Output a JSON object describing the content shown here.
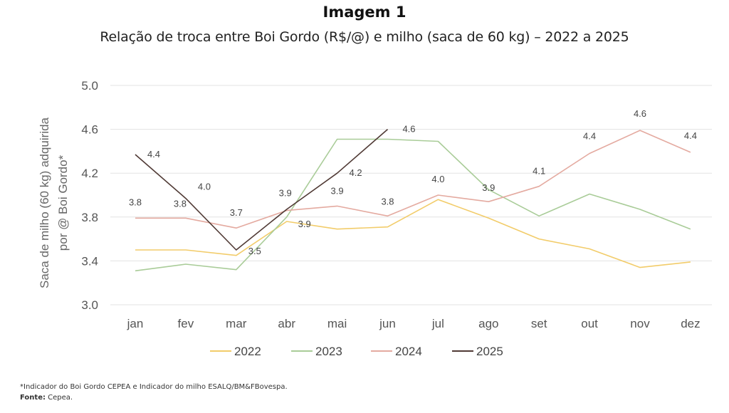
{
  "header": {
    "title": "Imagem 1",
    "subtitle": "Relação de troca entre Boi Gordo (R$/@) e milho (saca de 60 kg) – 2022 a 2025"
  },
  "footer": {
    "note": "*Indicador do Boi Gordo CEPEA e Indicador do milho ESALQ/BM&FBovespa.",
    "source_label": "Fonte:",
    "source_value": "Cepea."
  },
  "chart_data": {
    "type": "line",
    "title": "Imagem 1",
    "subtitle": "Relação de troca entre Boi Gordo (R$/@) e milho (saca de 60 kg) – 2022 a 2025",
    "ylabel_line1": "Saca de milho (60 kg) adquirida",
    "ylabel_line2": "por @ Boi Gordo*",
    "xlabel": "",
    "categories": [
      "jan",
      "fev",
      "mar",
      "abr",
      "mai",
      "jun",
      "jul",
      "ago",
      "set",
      "out",
      "nov",
      "dez"
    ],
    "yticks": [
      "5.0",
      "4.6",
      "4.2",
      "3.8",
      "3.4",
      "3.0"
    ],
    "ylim": [
      3.0,
      5.0
    ],
    "grid": "horizontal",
    "legend_position": "bottom",
    "series": [
      {
        "name": "2022",
        "color": "#f2cc6a",
        "values": [
          3.5,
          3.5,
          3.45,
          3.76,
          3.69,
          3.71,
          3.96,
          3.79,
          3.6,
          3.51,
          3.34,
          3.39
        ]
      },
      {
        "name": "2023",
        "color": "#a9cc98",
        "values": [
          3.31,
          3.37,
          3.32,
          3.8,
          4.51,
          4.51,
          4.49,
          4.05,
          3.81,
          4.01,
          3.87,
          3.69
        ]
      },
      {
        "name": "2024",
        "color": "#e4aaa0",
        "values": [
          3.79,
          3.79,
          3.7,
          3.86,
          3.9,
          3.81,
          4.0,
          3.94,
          4.08,
          4.38,
          4.59,
          4.39
        ],
        "labels": [
          "3.8",
          "3.8",
          "3.7",
          "3.9",
          "3.9",
          "3.8",
          "4.0",
          "3.9",
          "4.1",
          "4.4",
          "4.6",
          "4.4"
        ]
      },
      {
        "name": "2025",
        "color": "#503a35",
        "values": [
          4.37,
          3.97,
          3.5,
          3.87,
          4.2,
          4.6,
          null,
          null,
          null,
          null,
          null,
          null
        ],
        "labels": [
          "4.4",
          "4.0",
          "3.5",
          "3.9",
          "4.2",
          "4.6",
          null,
          null,
          null,
          null,
          null,
          null
        ]
      }
    ]
  }
}
